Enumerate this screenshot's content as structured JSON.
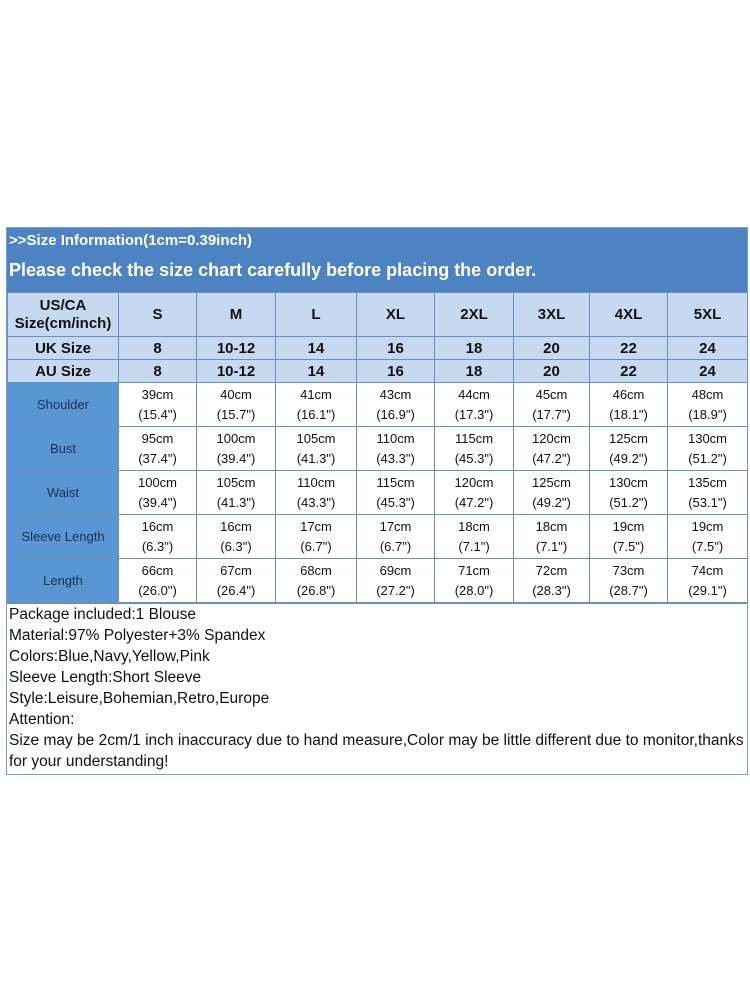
{
  "header": {
    "title": ">>Size Information(1cm=0.39inch)",
    "subtitle": "Please check the size chart carefully before placing the order."
  },
  "colors": {
    "title_bar": "#4d82c3",
    "header_rows": "#c6d9f0",
    "label_cells": "#5b96d4"
  },
  "table": {
    "size_row": {
      "label": [
        "US/CA",
        "Size(cm/inch)"
      ],
      "values": [
        "S",
        "M",
        "L",
        "XL",
        "2XL",
        "3XL",
        "4XL",
        "5XL"
      ]
    },
    "uk_row": {
      "label": "UK Size",
      "values": [
        "8",
        "10-12",
        "14",
        "16",
        "18",
        "20",
        "22",
        "24"
      ]
    },
    "au_row": {
      "label": "AU Size",
      "values": [
        "8",
        "10-12",
        "14",
        "16",
        "18",
        "20",
        "22",
        "24"
      ]
    },
    "rows": [
      {
        "label": "Shoulder",
        "cm": [
          "39cm",
          "40cm",
          "41cm",
          "43cm",
          "44cm",
          "45cm",
          "46cm",
          "48cm"
        ],
        "inch": [
          "(15.4\")",
          "(15.7\")",
          "(16.1\")",
          "(16.9\")",
          "(17.3\")",
          "(17.7\")",
          "(18.1\")",
          "(18.9\")"
        ]
      },
      {
        "label": "Bust",
        "cm": [
          "95cm",
          "100cm",
          "105cm",
          "110cm",
          "115cm",
          "120cm",
          "125cm",
          "130cm"
        ],
        "inch": [
          "(37.4\")",
          "(39.4\")",
          "(41.3\")",
          "(43.3\")",
          "(45.3\")",
          "(47.2\")",
          "(49.2\")",
          "(51.2\")"
        ]
      },
      {
        "label": "Waist",
        "cm": [
          "100cm",
          "105cm",
          "110cm",
          "115cm",
          "120cm",
          "125cm",
          "130cm",
          "135cm"
        ],
        "inch": [
          "(39.4\")",
          "(41.3\")",
          "(43.3\")",
          "(45.3\")",
          "(47.2\")",
          "(49.2\")",
          "(51.2\")",
          "(53.1\")"
        ]
      },
      {
        "label": "Sleeve Length",
        "cm": [
          "16cm",
          "16cm",
          "17cm",
          "17cm",
          "18cm",
          "18cm",
          "19cm",
          "19cm"
        ],
        "inch": [
          "(6.3\")",
          "(6.3\")",
          "(6.7\")",
          "(6.7\")",
          "(7.1\")",
          "(7.1\")",
          "(7.5\")",
          "(7.5\")"
        ]
      },
      {
        "label": "Length",
        "cm": [
          "66cm",
          "67cm",
          "68cm",
          "69cm",
          "71cm",
          "72cm",
          "73cm",
          "74cm"
        ],
        "inch": [
          "(26.0\")",
          "(26.4\")",
          "(26.8\")",
          "(27.2\")",
          "(28.0\")",
          "(28.3\")",
          "(28.7\")",
          "(29.1\")"
        ]
      }
    ]
  },
  "notes": [
    "Package included:1  Blouse",
    "Material:97% Polyester+3% Spandex",
    "Colors:Blue,Navy,Yellow,Pink",
    "Sleeve Length:Short Sleeve",
    "Style:Leisure,Bohemian,Retro,Europe",
    "Attention:",
    "Size may be 2cm/1  inch inaccuracy due to hand measure,Color may be little different due to monitor,thanks for your understanding!"
  ]
}
